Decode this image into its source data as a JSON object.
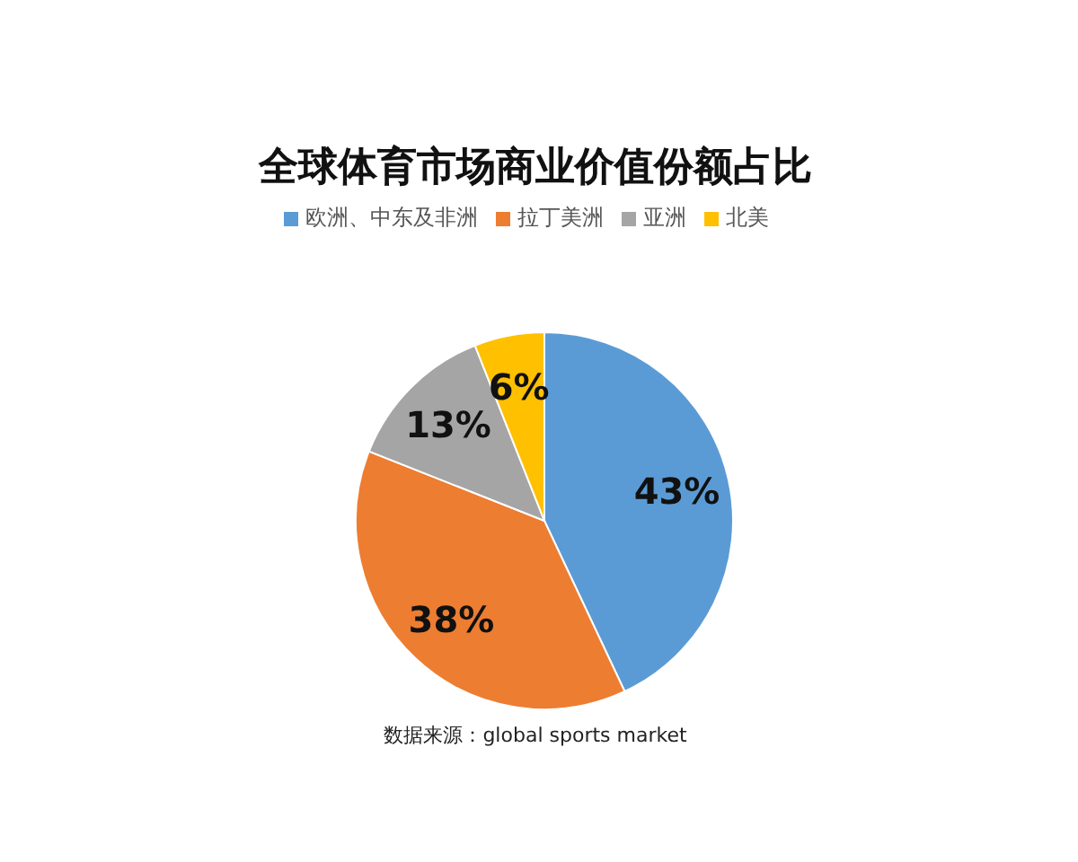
{
  "chart_data": {
    "type": "pie",
    "title": "全球体育市场商业价值份额占比",
    "categories": [
      "欧洲、中东及非洲",
      "拉丁美洲",
      "亚洲",
      "北美"
    ],
    "values": [
      43,
      38,
      13,
      6
    ],
    "colors": [
      "#5b9bd5",
      "#ed7d31",
      "#a5a5a5",
      "#ffc000"
    ],
    "value_labels": [
      "43%",
      "38%",
      "13%",
      "6%"
    ],
    "legend": "top",
    "annotations": [
      "数据来源：global sports market"
    ]
  }
}
